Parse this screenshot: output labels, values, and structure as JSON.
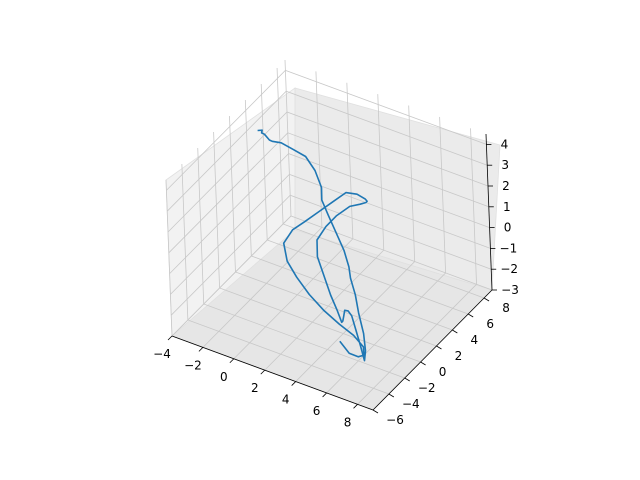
{
  "chart_data": {
    "type": "line3d",
    "title": "",
    "xlabel": "",
    "ylabel": "",
    "zlabel": "",
    "xlim": [
      -4,
      9
    ],
    "ylim": [
      -6,
      9
    ],
    "zlim": [
      -3,
      4.5
    ],
    "x_ticks": [
      "−4",
      "−2",
      "0",
      "2",
      "4",
      "6",
      "8"
    ],
    "y_ticks": [
      "−6",
      "−4",
      "−2",
      "0",
      "2",
      "4",
      "6",
      "8"
    ],
    "z_ticks": [
      "−3",
      "−2",
      "−1",
      "0",
      "1",
      "2",
      "3",
      "4"
    ],
    "grid": true,
    "series": [
      {
        "color": "#1f77b4",
        "points": [
          [
            -3.0,
            3.5,
            3.5
          ],
          [
            -2.6,
            3.3,
            3.7
          ],
          [
            -2.8,
            3.6,
            3.4
          ],
          [
            -2.4,
            3.2,
            3.6
          ],
          [
            -2.2,
            3.4,
            3.3
          ],
          [
            -1.8,
            3.0,
            3.5
          ],
          [
            -1.0,
            2.6,
            3.8
          ],
          [
            0.0,
            2.2,
            3.9
          ],
          [
            1.0,
            1.8,
            4.0
          ],
          [
            1.8,
            1.4,
            3.7
          ],
          [
            2.4,
            1.0,
            3.2
          ],
          [
            2.6,
            0.6,
            2.8
          ],
          [
            3.2,
            0.2,
            2.4
          ],
          [
            4.0,
            -0.4,
            2.0
          ],
          [
            4.8,
            -1.0,
            1.6
          ],
          [
            5.4,
            -1.6,
            1.2
          ],
          [
            5.8,
            -2.2,
            1.0
          ],
          [
            6.4,
            -2.8,
            0.6
          ],
          [
            7.0,
            -3.6,
            0.2
          ],
          [
            7.6,
            -4.2,
            -0.4
          ],
          [
            7.9,
            -4.6,
            -1.0
          ],
          [
            7.7,
            -4.4,
            -1.6
          ],
          [
            7.2,
            -3.9,
            -1.2
          ],
          [
            6.6,
            -3.3,
            -0.8
          ],
          [
            6.0,
            -2.6,
            -0.6
          ],
          [
            5.4,
            -1.9,
            -0.8
          ],
          [
            4.8,
            -1.2,
            -1.2
          ],
          [
            4.4,
            -0.6,
            -1.8
          ],
          [
            4.0,
            0.0,
            -2.4
          ],
          [
            3.6,
            0.6,
            -2.8
          ],
          [
            3.0,
            1.2,
            -2.6
          ],
          [
            2.4,
            1.6,
            -2.2
          ],
          [
            1.8,
            2.0,
            -1.6
          ],
          [
            1.2,
            2.4,
            -1.0
          ],
          [
            1.0,
            2.8,
            -0.4
          ],
          [
            1.4,
            3.2,
            0.2
          ],
          [
            2.0,
            3.4,
            0.8
          ],
          [
            2.8,
            3.6,
            1.4
          ],
          [
            3.6,
            3.4,
            1.8
          ],
          [
            4.2,
            3.0,
            2.2
          ],
          [
            4.6,
            2.4,
            2.6
          ],
          [
            4.8,
            1.8,
            3.0
          ],
          [
            4.6,
            1.2,
            3.4
          ],
          [
            4.2,
            0.6,
            3.6
          ],
          [
            3.6,
            0.0,
            3.2
          ],
          [
            3.0,
            -0.6,
            2.8
          ],
          [
            2.4,
            -1.2,
            2.4
          ],
          [
            1.8,
            -1.6,
            2.0
          ],
          [
            1.4,
            -2.0,
            1.4
          ],
          [
            1.8,
            -2.4,
            0.8
          ],
          [
            2.6,
            -2.8,
            0.4
          ],
          [
            3.6,
            -3.2,
            0.0
          ],
          [
            4.6,
            -3.4,
            -0.4
          ],
          [
            5.6,
            -3.4,
            -0.8
          ],
          [
            6.4,
            -3.2,
            -1.2
          ],
          [
            6.8,
            -2.8,
            -1.8
          ],
          [
            6.6,
            -2.4,
            -2.4
          ],
          [
            6.0,
            -2.0,
            -2.8
          ],
          [
            5.2,
            -1.6,
            -3.0
          ],
          [
            4.4,
            -1.2,
            -2.8
          ]
        ]
      }
    ]
  }
}
